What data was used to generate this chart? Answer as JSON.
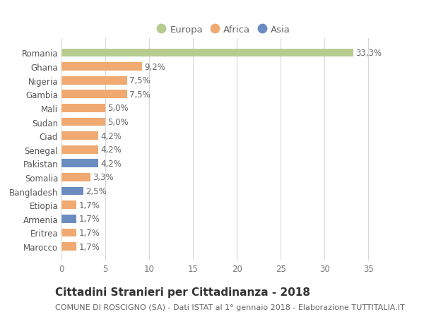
{
  "title": "Cittadini Stranieri per Cittadinanza - 2018",
  "subtitle": "COMUNE DI ROSCIGNO (SA) - Dati ISTAT al 1° gennaio 2018 - Elaborazione TUTTITALIA.IT",
  "categories": [
    "Romania",
    "Ghana",
    "Nigeria",
    "Gambia",
    "Mali",
    "Sudan",
    "Ciad",
    "Senegal",
    "Pakistan",
    "Somalia",
    "Bangladesh",
    "Etiopia",
    "Armenia",
    "Eritrea",
    "Marocco"
  ],
  "values": [
    33.3,
    9.2,
    7.5,
    7.5,
    5.0,
    5.0,
    4.2,
    4.2,
    4.2,
    3.3,
    2.5,
    1.7,
    1.7,
    1.7,
    1.7
  ],
  "labels": [
    "33,3%",
    "9,2%",
    "7,5%",
    "7,5%",
    "5,0%",
    "5,0%",
    "4,2%",
    "4,2%",
    "4,2%",
    "3,3%",
    "2,5%",
    "1,7%",
    "1,7%",
    "1,7%",
    "1,7%"
  ],
  "continents": [
    "Europa",
    "Africa",
    "Africa",
    "Africa",
    "Africa",
    "Africa",
    "Africa",
    "Africa",
    "Asia",
    "Africa",
    "Asia",
    "Africa",
    "Asia",
    "Africa",
    "Africa"
  ],
  "colors": {
    "Europa": "#b5cc8e",
    "Africa": "#f0a970",
    "Asia": "#6b8cbe"
  },
  "legend_labels": [
    "Europa",
    "Africa",
    "Asia"
  ],
  "xlim": [
    0,
    37
  ],
  "xticks": [
    0,
    5,
    10,
    15,
    20,
    25,
    30,
    35
  ],
  "background_color": "#ffffff",
  "grid_color": "#d8d8d8",
  "label_fontsize": 8.5,
  "value_fontsize": 8.5,
  "title_fontsize": 11,
  "subtitle_fontsize": 8,
  "legend_fontsize": 9.5
}
